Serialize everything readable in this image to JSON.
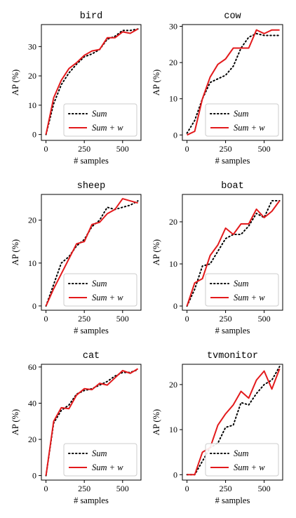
{
  "colors": {
    "sum": "#000000",
    "sum_w": "#e31a1c"
  },
  "chart_data": [
    {
      "type": "line",
      "title": "bird",
      "xlabel": "# samples",
      "ylabel": "AP (%)",
      "xlim": [
        -30,
        620
      ],
      "ylim": [
        -2,
        37.5
      ],
      "xticks": [
        0,
        250,
        500
      ],
      "yticks": [
        0,
        10,
        20,
        30
      ],
      "legend_position": "lower-right",
      "grid": false,
      "series": [
        {
          "name": "Sum",
          "style": "dotted",
          "x": [
            0,
            50,
            100,
            150,
            200,
            250,
            300,
            350,
            400,
            450,
            500,
            550,
            600
          ],
          "y": [
            0,
            10.5,
            17,
            21,
            24,
            26.5,
            27.5,
            29,
            32.5,
            33.5,
            35.5,
            35.5,
            36
          ]
        },
        {
          "name": "Sum + w",
          "style": "solid",
          "x": [
            0,
            50,
            100,
            150,
            200,
            250,
            300,
            350,
            400,
            450,
            500,
            550,
            600
          ],
          "y": [
            0,
            12.5,
            18.5,
            22.5,
            24.5,
            27,
            28.5,
            29,
            33,
            33,
            35,
            34.5,
            36
          ]
        }
      ]
    },
    {
      "type": "line",
      "title": "cow",
      "xlabel": "# samples",
      "ylabel": "",
      "xlim": [
        -30,
        620
      ],
      "ylim": [
        -1.5,
        30.5
      ],
      "xticks": [
        0,
        250,
        500
      ],
      "yticks": [
        0,
        10,
        20,
        30
      ],
      "legend_position": "lower-right",
      "grid": false,
      "series": [
        {
          "name": "Sum",
          "style": "dotted",
          "x": [
            0,
            50,
            100,
            150,
            200,
            250,
            300,
            350,
            400,
            450,
            500,
            550,
            600
          ],
          "y": [
            0.5,
            4,
            10,
            14.5,
            15.5,
            16.5,
            19,
            24,
            27,
            28,
            27.5,
            27.5,
            27.5
          ]
        },
        {
          "name": "Sum + w",
          "style": "solid",
          "x": [
            0,
            50,
            100,
            150,
            200,
            250,
            300,
            350,
            400,
            450,
            500,
            550,
            600
          ],
          "y": [
            0,
            1,
            10,
            16,
            19.5,
            21,
            24,
            24,
            24,
            29,
            28,
            29,
            29
          ]
        }
      ]
    },
    {
      "type": "line",
      "title": "sheep",
      "xlabel": "# samples",
      "ylabel": "AP (%)",
      "xlim": [
        -30,
        620
      ],
      "ylim": [
        -1,
        26
      ],
      "xticks": [
        0,
        250,
        500
      ],
      "yticks": [
        0,
        10,
        20
      ],
      "legend_position": "lower-right",
      "grid": false,
      "series": [
        {
          "name": "Sum",
          "style": "dotted",
          "x": [
            0,
            50,
            100,
            150,
            200,
            250,
            300,
            350,
            400,
            450,
            500,
            550,
            600
          ],
          "y": [
            0,
            5,
            10,
            11.5,
            14,
            15.5,
            18.5,
            20,
            23,
            22.5,
            23,
            23.5,
            24.5
          ]
        },
        {
          "name": "Sum + w",
          "style": "solid",
          "x": [
            0,
            50,
            100,
            150,
            200,
            250,
            300,
            350,
            400,
            450,
            500,
            550,
            600
          ],
          "y": [
            0,
            4,
            7.5,
            11,
            14.5,
            15,
            19,
            19.5,
            21.5,
            22.5,
            25,
            24.5,
            24
          ]
        }
      ]
    },
    {
      "type": "line",
      "title": "boat",
      "xlabel": "# samples",
      "ylabel": "",
      "xlim": [
        -30,
        620
      ],
      "ylim": [
        -1,
        26.5
      ],
      "xticks": [
        0,
        250,
        500
      ],
      "yticks": [
        0,
        10,
        20
      ],
      "legend_position": "lower-right",
      "grid": false,
      "series": [
        {
          "name": "Sum",
          "style": "dotted",
          "x": [
            0,
            50,
            100,
            150,
            200,
            250,
            300,
            350,
            400,
            450,
            500,
            550,
            600
          ],
          "y": [
            0,
            4,
            9.5,
            10,
            13,
            16,
            17,
            17,
            19,
            22,
            21,
            25,
            25
          ]
        },
        {
          "name": "Sum + w",
          "style": "solid",
          "x": [
            0,
            50,
            100,
            150,
            200,
            250,
            300,
            350,
            400,
            450,
            500,
            550,
            600
          ],
          "y": [
            0,
            5.5,
            6.5,
            12,
            14.5,
            18.5,
            17,
            19.5,
            19.5,
            23,
            21,
            22.5,
            25
          ]
        }
      ]
    },
    {
      "type": "line",
      "title": "cat",
      "xlabel": "# samples",
      "ylabel": "AP (%)",
      "xlim": [
        -30,
        620
      ],
      "ylim": [
        -2.5,
        61.5
      ],
      "xticks": [
        0,
        250,
        500
      ],
      "yticks": [
        0,
        20,
        40,
        60
      ],
      "legend_position": "lower-right",
      "grid": false,
      "series": [
        {
          "name": "Sum",
          "style": "dotted",
          "x": [
            0,
            50,
            100,
            150,
            200,
            250,
            300,
            350,
            400,
            450,
            500,
            550,
            600
          ],
          "y": [
            0,
            29,
            36,
            39,
            45,
            47,
            48,
            50,
            52,
            55,
            57,
            57,
            58.5
          ]
        },
        {
          "name": "Sum + w",
          "style": "solid",
          "x": [
            0,
            50,
            100,
            150,
            200,
            250,
            300,
            350,
            400,
            450,
            500,
            550,
            600
          ],
          "y": [
            0,
            30,
            37.5,
            37,
            44.5,
            48,
            47.5,
            51,
            50,
            54,
            58,
            56.5,
            59
          ]
        }
      ]
    },
    {
      "type": "line",
      "title": "tvmonitor",
      "xlabel": "# samples",
      "ylabel": "",
      "xlim": [
        -30,
        620
      ],
      "ylim": [
        -1.2,
        24.5
      ],
      "xticks": [
        0,
        250,
        500
      ],
      "yticks": [
        0,
        10,
        20
      ],
      "legend_position": "lower-right",
      "grid": false,
      "series": [
        {
          "name": "Sum",
          "style": "dotted",
          "x": [
            0,
            50,
            100,
            150,
            200,
            250,
            300,
            350,
            400,
            450,
            500,
            550,
            600
          ],
          "y": [
            0,
            0,
            3,
            6,
            7,
            10.5,
            11,
            16,
            15.5,
            18,
            20,
            21,
            24
          ]
        },
        {
          "name": "Sum + w",
          "style": "solid",
          "x": [
            0,
            50,
            100,
            150,
            200,
            250,
            300,
            350,
            400,
            450,
            500,
            550,
            600
          ],
          "y": [
            0,
            0,
            5,
            6,
            11,
            13.5,
            15.5,
            18.5,
            17,
            21,
            23,
            19,
            23.5
          ]
        }
      ]
    }
  ]
}
